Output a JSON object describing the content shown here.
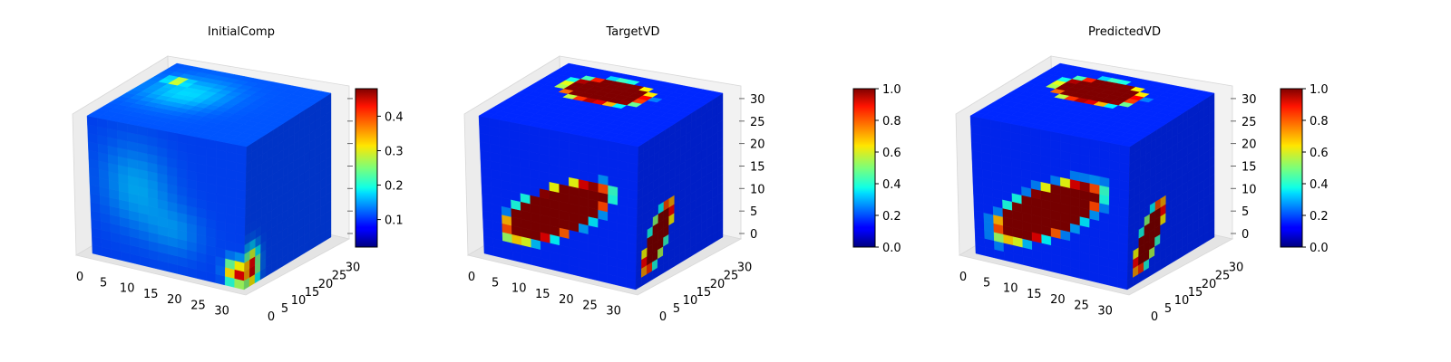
{
  "chart_data": [
    {
      "type": "voxel-3d",
      "title": "InitialComp",
      "grid_size": 32,
      "x_ticks": [
        "0",
        "5",
        "10",
        "15",
        "20",
        "25",
        "30"
      ],
      "y_ticks": [
        "0",
        "5",
        "10",
        "15",
        "20",
        "25",
        "30"
      ],
      "z_ticks": [
        "",
        "",
        "",
        "",
        "",
        "",
        ""
      ],
      "colorbar": {
        "min": 0.02,
        "max": 0.48,
        "ticks": [
          "0.1",
          "0.2",
          "0.3",
          "0.4"
        ],
        "tick_values": [
          0.1,
          0.2,
          0.3,
          0.4
        ]
      },
      "colormap": "jet",
      "value_range": [
        0.0,
        0.45
      ]
    },
    {
      "type": "voxel-3d",
      "title": "TargetVD",
      "grid_size": 32,
      "x_ticks": [
        "0",
        "5",
        "10",
        "15",
        "20",
        "25",
        "30"
      ],
      "y_ticks": [
        "0",
        "5",
        "10",
        "15",
        "20",
        "25",
        "30"
      ],
      "z_ticks": [
        "0",
        "5",
        "10",
        "15",
        "20",
        "25",
        "30"
      ],
      "colorbar": {
        "min": 0.0,
        "max": 1.0,
        "ticks": [
          "0.0",
          "0.2",
          "0.4",
          "0.6",
          "0.8",
          "1.0"
        ],
        "tick_values": [
          0.0,
          0.2,
          0.4,
          0.6,
          0.8,
          1.0
        ]
      },
      "colormap": "jet",
      "value_range": [
        0.0,
        1.0
      ]
    },
    {
      "type": "voxel-3d",
      "title": "PredictedVD",
      "grid_size": 32,
      "x_ticks": [
        "0",
        "5",
        "10",
        "15",
        "20",
        "25",
        "30"
      ],
      "y_ticks": [
        "0",
        "5",
        "10",
        "15",
        "20",
        "25",
        "30"
      ],
      "z_ticks": [
        "0",
        "5",
        "10",
        "15",
        "20",
        "25",
        "30"
      ],
      "colorbar": {
        "min": 0.0,
        "max": 1.0,
        "ticks": [
          "0.0",
          "0.2",
          "0.4",
          "0.6",
          "0.8",
          "1.0"
        ],
        "tick_values": [
          0.0,
          0.2,
          0.4,
          0.6,
          0.8,
          1.0
        ]
      },
      "colormap": "jet",
      "value_range": [
        0.0,
        1.0
      ]
    }
  ]
}
